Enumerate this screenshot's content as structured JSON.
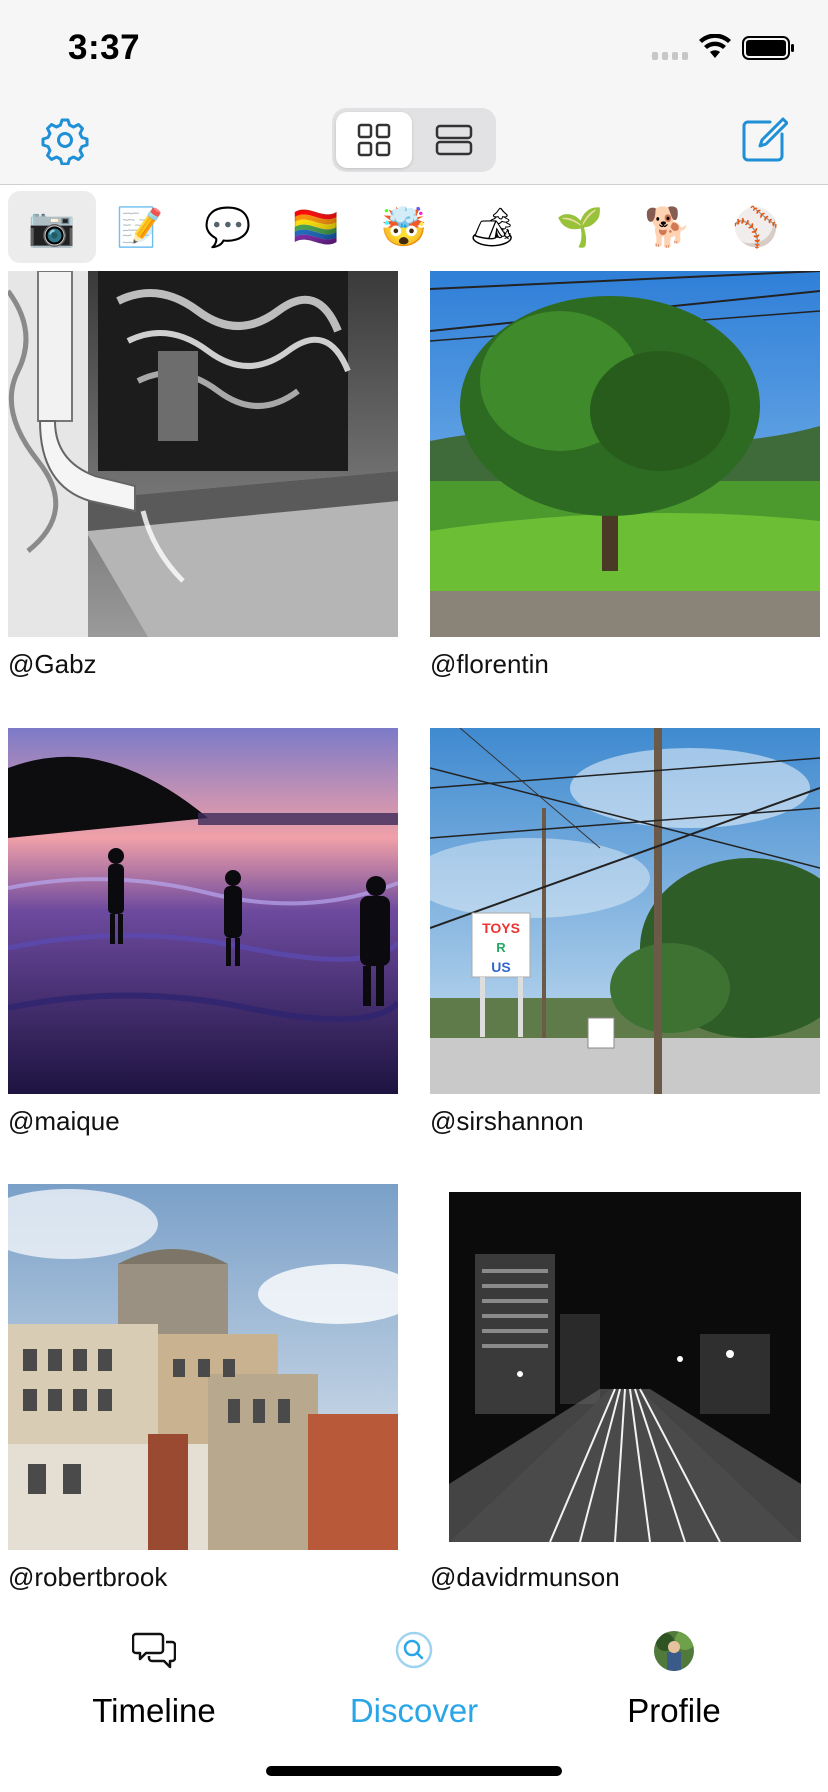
{
  "status": {
    "time": "3:37"
  },
  "nav": {
    "settings_icon": "gear-icon",
    "view_modes": [
      "grid-view-icon",
      "list-view-icon"
    ],
    "compose_icon": "compose-icon",
    "accent": "#1f8fd6"
  },
  "emoji_categories": [
    "📷",
    "📝",
    "💬",
    "🏳️‍🌈",
    "🤯",
    "🏕",
    "🌱",
    "🐕",
    "⚾"
  ],
  "posts": [
    {
      "username": "@Gabz"
    },
    {
      "username": "@florentin"
    },
    {
      "username": "@maique"
    },
    {
      "username": "@sirshannon"
    },
    {
      "username": "@robertbrook"
    },
    {
      "username": "@davidrmunson"
    }
  ],
  "tabs": [
    {
      "label": "Timeline",
      "icon": "chat-bubbles-icon",
      "active": false
    },
    {
      "label": "Discover",
      "icon": "discover-search-icon",
      "active": true
    },
    {
      "label": "Profile",
      "icon": "avatar-icon",
      "active": false
    }
  ],
  "colors": {
    "active_tab": "#2aa6e8",
    "inactive_tab": "#000000"
  }
}
